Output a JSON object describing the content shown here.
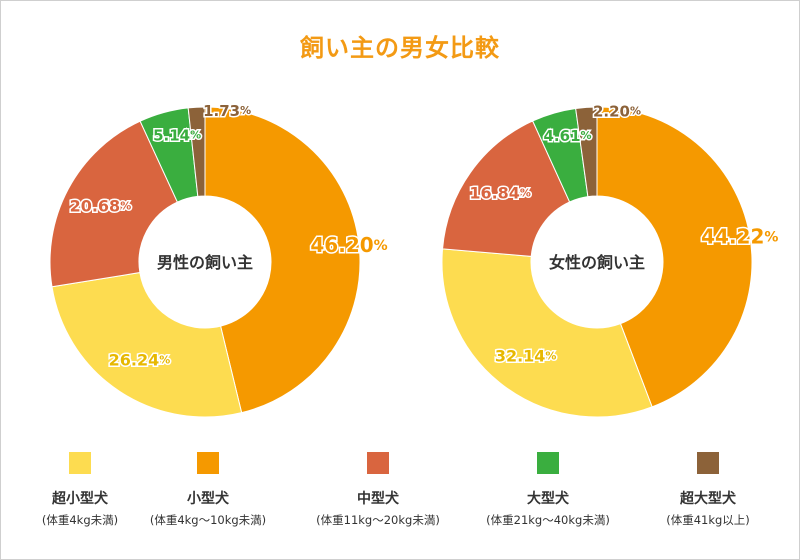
{
  "chart_data": {
    "type": "pie",
    "title": "飼い主の男女比較",
    "categories": [
      "超小型犬",
      "小型犬",
      "中型犬",
      "大型犬",
      "超大型犬"
    ],
    "colors": [
      "#fddc50",
      "#f59900",
      "#d9653f",
      "#3aae3f",
      "#8c6239"
    ],
    "series": [
      {
        "name": "男性の飼い主",
        "values": [
          26.24,
          46.2,
          20.68,
          5.14,
          1.73
        ],
        "labels": [
          "26.24",
          "46.20",
          "20.68",
          "5.14",
          "1.73"
        ]
      },
      {
        "name": "女性の飼い主",
        "values": [
          32.14,
          44.22,
          16.84,
          4.61,
          2.2
        ],
        "labels": [
          "32.14",
          "44.22",
          "16.84",
          "4.61",
          "2.20"
        ]
      }
    ],
    "unit": "%",
    "legend": [
      {
        "label": "超小型犬",
        "sub": "(体重4kg未満)"
      },
      {
        "label": "小型犬",
        "sub": "(体重4kg〜10kg未満)"
      },
      {
        "label": "中型犬",
        "sub": "(体重11kg〜20kg未満)"
      },
      {
        "label": "大型犬",
        "sub": "(体重21kg〜40kg未満)"
      },
      {
        "label": "超大型犬",
        "sub": "(体重41kg以上)"
      }
    ],
    "legend_position": "bottom"
  }
}
